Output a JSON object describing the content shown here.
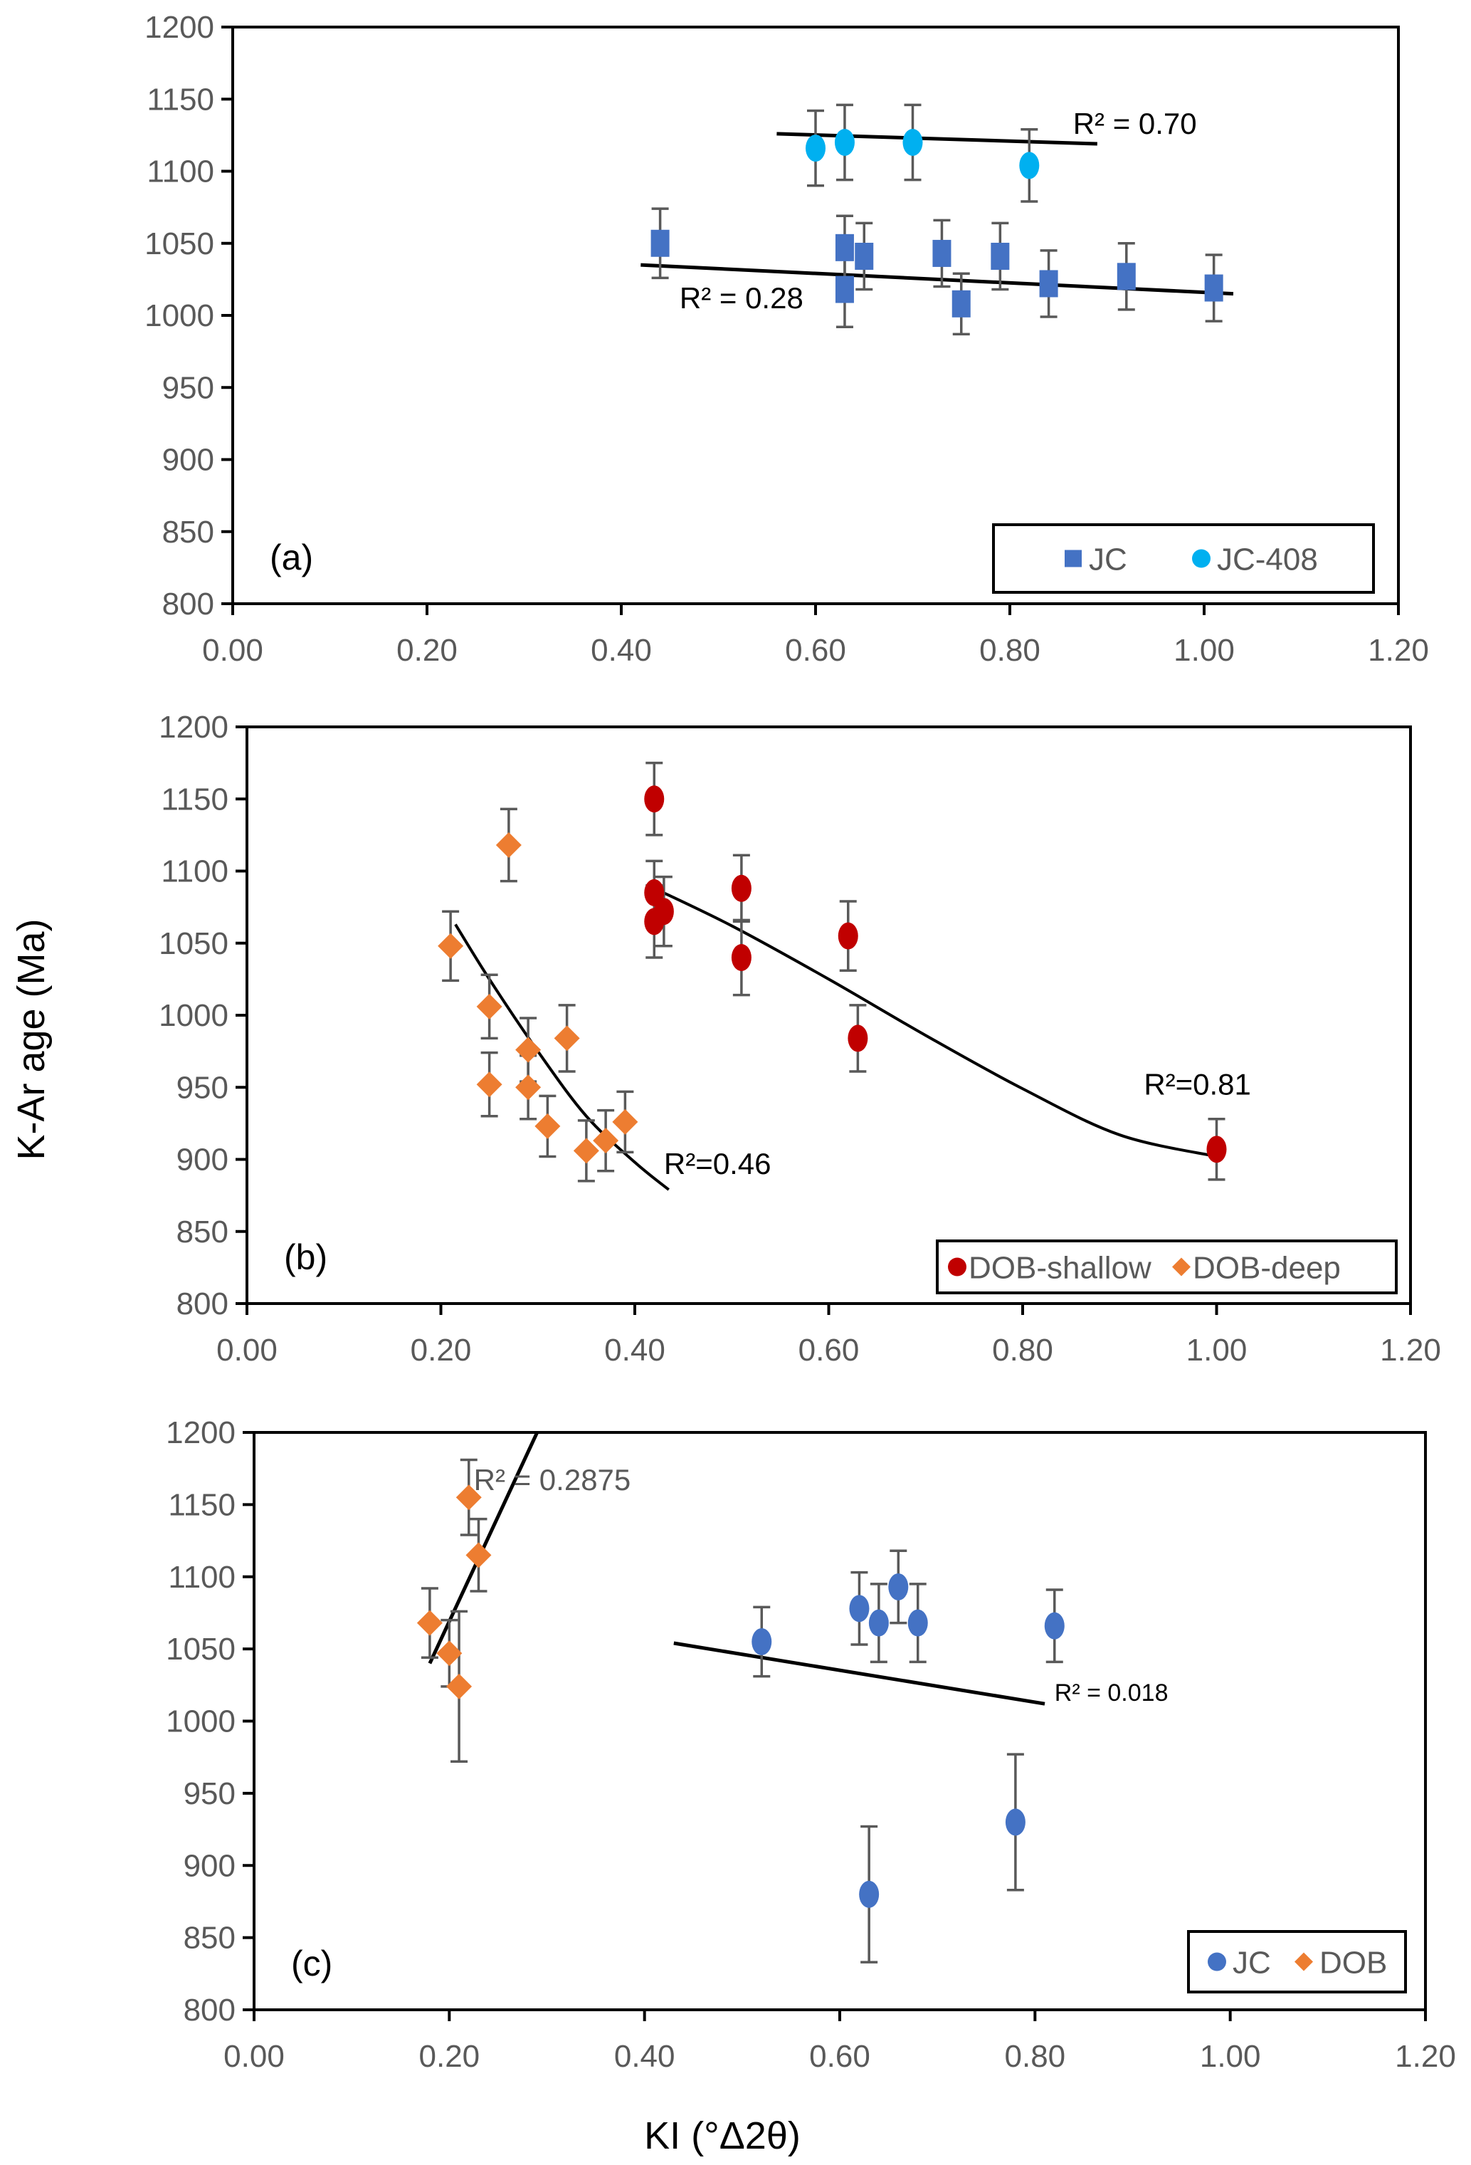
{
  "chart_data": [
    {
      "id": "a",
      "type": "scatter",
      "panel_label": "(a)",
      "xlim": [
        0,
        1.2
      ],
      "ylim": [
        800,
        1200
      ],
      "xticks": [
        "0.00",
        "0.20",
        "0.40",
        "0.60",
        "0.80",
        "1.00",
        "1.20"
      ],
      "yticks": [
        "800",
        "850",
        "900",
        "950",
        "1000",
        "1050",
        "1100",
        "1150",
        "1200"
      ],
      "legend_position": "bottom-right",
      "series": [
        {
          "name": "JC",
          "marker": "square",
          "color": "#4472C4",
          "points": [
            {
              "x": 0.44,
              "y": 1050,
              "err": 24
            },
            {
              "x": 0.63,
              "y": 1047,
              "err": 22
            },
            {
              "x": 0.63,
              "y": 1018,
              "err": 26
            },
            {
              "x": 0.65,
              "y": 1041,
              "err": 23
            },
            {
              "x": 0.73,
              "y": 1043,
              "err": 23
            },
            {
              "x": 0.75,
              "y": 1008,
              "err": 21
            },
            {
              "x": 0.79,
              "y": 1041,
              "err": 23
            },
            {
              "x": 0.84,
              "y": 1022,
              "err": 23
            },
            {
              "x": 0.92,
              "y": 1027,
              "err": 23
            },
            {
              "x": 1.01,
              "y": 1019,
              "err": 23
            }
          ],
          "trendline": {
            "kind": "linear",
            "points": [
              [
                0.42,
                1035
              ],
              [
                1.03,
                1015
              ]
            ],
            "r2_label": "R² = 0.28",
            "r2_at": [
              0.46,
              1005
            ],
            "r2_style": "black"
          }
        },
        {
          "name": "JC-408",
          "marker": "circle",
          "color": "#00B0F0",
          "points": [
            {
              "x": 0.6,
              "y": 1116,
              "err": 26
            },
            {
              "x": 0.63,
              "y": 1120,
              "err": 26
            },
            {
              "x": 0.7,
              "y": 1120,
              "err": 26
            },
            {
              "x": 0.82,
              "y": 1104,
              "err": 25
            }
          ],
          "trendline": {
            "kind": "linear",
            "points": [
              [
                0.56,
                1126
              ],
              [
                0.89,
                1119
              ]
            ],
            "r2_label": "R² = 0.70",
            "r2_at": [
              0.865,
              1126
            ],
            "r2_style": "black"
          }
        }
      ]
    },
    {
      "id": "b",
      "type": "scatter",
      "panel_label": "(b)",
      "xlim": [
        0,
        1.2
      ],
      "ylim": [
        800,
        1200
      ],
      "xticks": [
        "0.00",
        "0.20",
        "0.40",
        "0.60",
        "0.80",
        "1.00",
        "1.20"
      ],
      "yticks": [
        "800",
        "850",
        "900",
        "950",
        "1000",
        "1050",
        "1100",
        "1150",
        "1200"
      ],
      "legend_position": "bottom-right",
      "series": [
        {
          "name": "DOB-shallow",
          "marker": "circle",
          "color": "#C00000",
          "points": [
            {
              "x": 0.42,
              "y": 1150,
              "err": 25
            },
            {
              "x": 0.42,
              "y": 1085,
              "err": 22
            },
            {
              "x": 0.42,
              "y": 1065,
              "err": 25
            },
            {
              "x": 0.43,
              "y": 1072,
              "err": 24
            },
            {
              "x": 0.51,
              "y": 1088,
              "err": 23
            },
            {
              "x": 0.51,
              "y": 1040,
              "err": 26
            },
            {
              "x": 0.62,
              "y": 1055,
              "err": 24
            },
            {
              "x": 0.63,
              "y": 984,
              "err": 23
            },
            {
              "x": 1.0,
              "y": 907,
              "err": 21
            }
          ],
          "trendline": {
            "kind": "polynomial",
            "points": [
              [
                0.42,
                1088
              ],
              [
                0.5,
                1062
              ],
              [
                0.6,
                1025
              ],
              [
                0.7,
                986
              ],
              [
                0.8,
                949
              ],
              [
                0.9,
                917
              ],
              [
                1.0,
                902
              ]
            ],
            "r2_label": "R²=0.81",
            "r2_at": [
              0.925,
              945
            ],
            "r2_style": "black"
          }
        },
        {
          "name": "DOB-deep",
          "marker": "diamond",
          "color": "#ED7D31",
          "points": [
            {
              "x": 0.21,
              "y": 1048,
              "err": 24
            },
            {
              "x": 0.25,
              "y": 1006,
              "err": 22
            },
            {
              "x": 0.25,
              "y": 952,
              "err": 22
            },
            {
              "x": 0.27,
              "y": 1118,
              "err": 25
            },
            {
              "x": 0.29,
              "y": 976,
              "err": 22
            },
            {
              "x": 0.29,
              "y": 950,
              "err": 22
            },
            {
              "x": 0.31,
              "y": 923,
              "err": 21
            },
            {
              "x": 0.33,
              "y": 984,
              "err": 23
            },
            {
              "x": 0.35,
              "y": 906,
              "err": 21
            },
            {
              "x": 0.37,
              "y": 913,
              "err": 21
            },
            {
              "x": 0.39,
              "y": 926,
              "err": 21
            }
          ],
          "trendline": {
            "kind": "polynomial",
            "points": [
              [
                0.215,
                1063
              ],
              [
                0.25,
                1025
              ],
              [
                0.3,
                975
              ],
              [
                0.35,
                930
              ],
              [
                0.4,
                898
              ],
              [
                0.435,
                879
              ]
            ],
            "r2_label": "R²=0.46",
            "r2_at": [
              0.43,
              890
            ],
            "r2_style": "black"
          }
        }
      ]
    },
    {
      "id": "c",
      "type": "scatter",
      "panel_label": "(c)",
      "xlim": [
        0,
        1.2
      ],
      "ylim": [
        800,
        1200
      ],
      "xticks": [
        "0.00",
        "0.20",
        "0.40",
        "0.60",
        "0.80",
        "1.00",
        "1.20"
      ],
      "yticks": [
        "800",
        "850",
        "900",
        "950",
        "1000",
        "1050",
        "1100",
        "1150",
        "1200"
      ],
      "xlabel": "KI (°Δ2θ)",
      "legend_position": "bottom-right",
      "series": [
        {
          "name": "JC",
          "marker": "circle",
          "color": "#4472C4",
          "points": [
            {
              "x": 0.52,
              "y": 1055,
              "err": 24
            },
            {
              "x": 0.62,
              "y": 1078,
              "err": 25
            },
            {
              "x": 0.64,
              "y": 1068,
              "err": 27
            },
            {
              "x": 0.66,
              "y": 1093,
              "err": 25
            },
            {
              "x": 0.68,
              "y": 1068,
              "err": 27
            },
            {
              "x": 0.82,
              "y": 1066,
              "err": 25
            },
            {
              "x": 0.63,
              "y": 880,
              "err": 47
            },
            {
              "x": 0.78,
              "y": 930,
              "err": 47
            }
          ],
          "trendline": {
            "kind": "linear",
            "points": [
              [
                0.43,
                1054
              ],
              [
                0.81,
                1012
              ]
            ],
            "r2_label": "R² = 0.018",
            "r2_at": [
              0.82,
              1014
            ],
            "r2_style": "black-small"
          }
        },
        {
          "name": "DOB",
          "marker": "diamond",
          "color": "#ED7D31",
          "points": [
            {
              "x": 0.18,
              "y": 1068,
              "err": 24
            },
            {
              "x": 0.2,
              "y": 1047,
              "err": 23
            },
            {
              "x": 0.21,
              "y": 1024,
              "err": 52
            },
            {
              "x": 0.22,
              "y": 1155,
              "err": 26
            },
            {
              "x": 0.23,
              "y": 1115,
              "err": 25
            }
          ],
          "trendline": {
            "kind": "linear",
            "points": [
              [
                0.18,
                1040
              ],
              [
                0.29,
                1200
              ]
            ],
            "r2_label": "R² = 0.2875",
            "r2_at": [
              0.225,
              1160
            ],
            "r2_style": "gray"
          }
        }
      ]
    }
  ],
  "shared": {
    "ylabel": "K-Ar age (Ma)",
    "xlabel": "KI (°Δ2θ)"
  }
}
